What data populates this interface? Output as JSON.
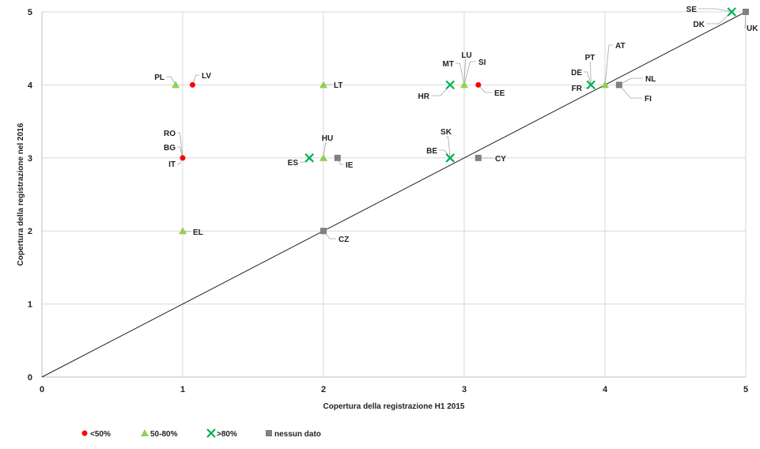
{
  "chart_data": {
    "type": "scatter",
    "xlabel": "Copertura della registrazione H1 2015",
    "ylabel": "Copertura della registrazione nel 2016",
    "xlim": [
      0,
      5
    ],
    "ylim": [
      0,
      5
    ],
    "xticks": [
      "0",
      "1",
      "2",
      "3",
      "4",
      "5"
    ],
    "yticks": [
      "0",
      "1",
      "2",
      "3",
      "4",
      "5"
    ],
    "grid": true,
    "legend_position": "bottom-left",
    "reference_line": {
      "from": [
        0,
        0
      ],
      "to": [
        5,
        5
      ]
    },
    "series": [
      {
        "name": "<50%",
        "marker": "circle",
        "color": "#ff0000"
      },
      {
        "name": "50-80%",
        "marker": "triangle",
        "color": "#92d050"
      },
      {
        "name": ">80%",
        "marker": "x",
        "color": "#00b050"
      },
      {
        "name": "nessun dato",
        "marker": "square",
        "color": "#808080"
      }
    ],
    "points": [
      {
        "x": 0.95,
        "y": 4,
        "series": 2,
        "labels": [
          "PL"
        ]
      },
      {
        "x": 1.07,
        "y": 4,
        "series": 1,
        "labels": [
          "LV"
        ]
      },
      {
        "x": 2,
        "y": 4,
        "series": 2,
        "labels": [
          "LT"
        ]
      },
      {
        "x": 1,
        "y": 3,
        "series": 1,
        "labels": [
          "RO",
          "BG",
          "IT"
        ]
      },
      {
        "x": 2,
        "y": 3,
        "series": 2,
        "labels": [
          "HU"
        ]
      },
      {
        "x": 1.9,
        "y": 3,
        "series": 3,
        "labels": [
          "ES"
        ]
      },
      {
        "x": 2.1,
        "y": 3,
        "series": 4,
        "labels": [
          "IE"
        ]
      },
      {
        "x": 1,
        "y": 2,
        "series": 2,
        "labels": [
          "EL"
        ]
      },
      {
        "x": 2,
        "y": 2,
        "series": 4,
        "labels": [
          "CZ"
        ]
      },
      {
        "x": 2.9,
        "y": 4,
        "series": 3,
        "labels": [
          "HR"
        ]
      },
      {
        "x": 3,
        "y": 4,
        "series": 2,
        "labels": [
          "MT",
          "LU",
          "SI"
        ]
      },
      {
        "x": 3.1,
        "y": 4,
        "series": 1,
        "labels": [
          "EE"
        ]
      },
      {
        "x": 2.9,
        "y": 3,
        "series": 3,
        "labels": [
          "SK",
          "BE"
        ]
      },
      {
        "x": 3.1,
        "y": 3,
        "series": 4,
        "labels": [
          "CY"
        ]
      },
      {
        "x": 3.9,
        "y": 4,
        "series": 3,
        "labels": [
          "DE",
          "PT",
          "FR"
        ]
      },
      {
        "x": 4,
        "y": 4,
        "series": 2,
        "labels": [
          "AT"
        ]
      },
      {
        "x": 4.1,
        "y": 4,
        "series": 4,
        "labels": [
          "NL",
          "FI"
        ]
      },
      {
        "x": 4.9,
        "y": 5,
        "series": 3,
        "labels": [
          "SE",
          "DK"
        ]
      },
      {
        "x": 5,
        "y": 5,
        "series": 4,
        "labels": [
          "UK"
        ]
      }
    ]
  }
}
